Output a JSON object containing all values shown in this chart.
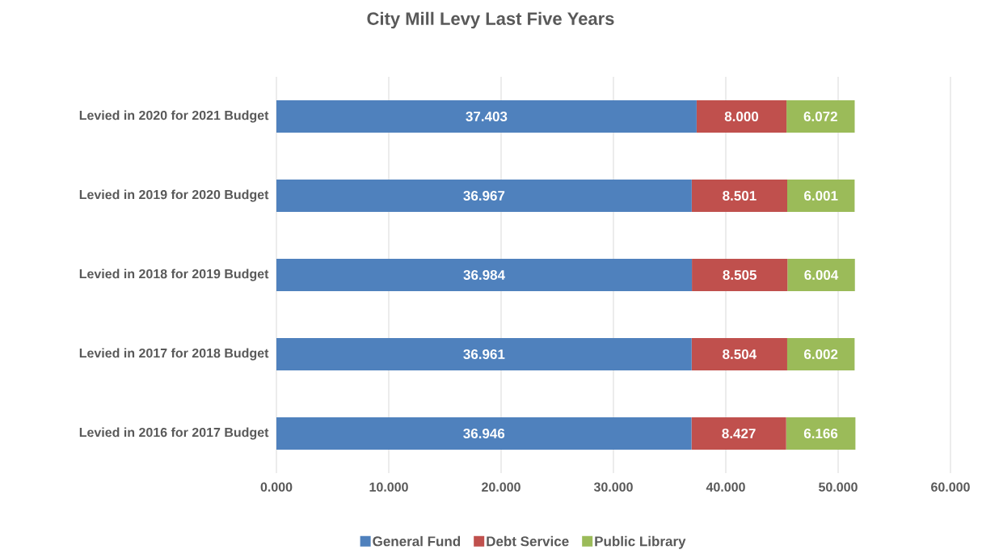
{
  "chart_data": {
    "type": "bar",
    "orientation": "horizontal",
    "stacked": true,
    "title": "City Mill Levy Last Five Years",
    "categories": [
      "Levied in 2020 for 2021 Budget",
      "Levied in 2019 for 2020 Budget",
      "Levied in 2018 for 2019 Budget",
      "Levied in 2017 for 2018 Budget",
      "Levied in 2016 for 2017 Budget"
    ],
    "series": [
      {
        "name": "General Fund",
        "color": "#4f81bd",
        "values": [
          37.403,
          36.967,
          36.984,
          36.961,
          36.946
        ],
        "value_labels": [
          "37.403",
          "36.967",
          "36.984",
          "36.961",
          "36.946"
        ]
      },
      {
        "name": "Debt Service",
        "color": "#c0504d",
        "values": [
          8.0,
          8.501,
          8.505,
          8.504,
          8.427
        ],
        "value_labels": [
          "8.000",
          "8.501",
          "8.505",
          "8.504",
          "8.427"
        ]
      },
      {
        "name": "Public Library",
        "color": "#9bbb59",
        "values": [
          6.072,
          6.001,
          6.004,
          6.002,
          6.166
        ],
        "value_labels": [
          "6.072",
          "6.001",
          "6.004",
          "6.002",
          "6.166"
        ]
      }
    ],
    "xlim": [
      0,
      60
    ],
    "xticks": [
      {
        "value": 0,
        "label": "0.000"
      },
      {
        "value": 10,
        "label": "10.000"
      },
      {
        "value": 20,
        "label": "20.000"
      },
      {
        "value": 30,
        "label": "30.000"
      },
      {
        "value": 40,
        "label": "40.000"
      },
      {
        "value": 50,
        "label": "50.000"
      },
      {
        "value": 60,
        "label": "60.000"
      }
    ],
    "grid": "x",
    "legend": "bottom"
  }
}
